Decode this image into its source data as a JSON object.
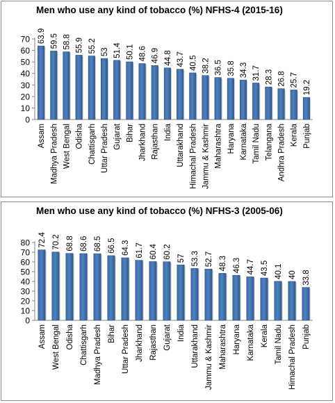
{
  "chart_data": [
    {
      "type": "bar",
      "title": "Men who use any kind of tobacco (%) NFHS-4 (2015-16)",
      "categories": [
        "Assam",
        "Madhya Pradesh",
        "West Bengal",
        "Odisha",
        "Chattisgarh",
        "Uttar Pradesh",
        "Gujarat",
        "Bihar",
        "Jharkhand",
        "Rajasthan",
        "India",
        "Uttarakhand",
        "Himachal Pradesh",
        "Jammu & Kashmir",
        "Maharashtra",
        "Haryana",
        "Karnataka",
        "Tamil Nadu",
        "Telangana",
        "Andhra Pradesh",
        "Kerala",
        "Punjab"
      ],
      "values": [
        63.9,
        59.5,
        58.8,
        55.9,
        55.2,
        53,
        51.4,
        50.1,
        48.6,
        46.9,
        44.8,
        43.7,
        40.5,
        38.2,
        36.5,
        35.8,
        34.3,
        31.7,
        28.3,
        26.8,
        25.7,
        19.2
      ],
      "value_labels": [
        "63.9",
        "59.5",
        "58.8",
        "55.9",
        "55.2",
        "53",
        "51.4",
        "50.1",
        "48.6",
        "46.9",
        "44.8",
        "43.7",
        "40.5",
        "38.2",
        "36.5",
        "35.8",
        "34.3",
        "31.7",
        "28.3",
        "26.8",
        "25.7",
        "19.2"
      ],
      "ylim": [
        0,
        70
      ],
      "yticks": [
        "0",
        "10",
        "20",
        "30",
        "40",
        "50",
        "60",
        "70"
      ],
      "grid": false,
      "bar_color": "#4f81bd"
    },
    {
      "type": "bar",
      "title": "Men who use any kind of tobacco (%) NFHS-3 (2005-06)",
      "categories": [
        "Assam",
        "West Bengal",
        "Odisha",
        "Chattisgarh",
        "Madhya Pradesh",
        "Bihar",
        "Uttar Pradesh",
        "Jharkhand",
        "Rajasthan",
        "Gujarat",
        "India",
        "Uttarakhand",
        "Jammu & Kashmir",
        "Maharashtra",
        "Haryana",
        "Karnataka",
        "Kerala",
        "Tamil Nadu",
        "Himachal Pradesh",
        "Punjab"
      ],
      "values": [
        72.4,
        70.2,
        68.8,
        68.6,
        68.5,
        66.5,
        64.3,
        61.7,
        60.4,
        60.2,
        57,
        53.3,
        52.7,
        48.3,
        46.3,
        44.7,
        43.5,
        40.1,
        40,
        33.8
      ],
      "value_labels": [
        "72.4",
        "70.2",
        "68.8",
        "68.6",
        "68.5",
        "66.5",
        "64.3",
        "61.7",
        "60.4",
        "60.2",
        "57",
        "53.3",
        "52.7",
        "48.3",
        "46.3",
        "44.7",
        "43.5",
        "40.1",
        "40",
        "33.8"
      ],
      "ylim": [
        0,
        80
      ],
      "yticks": [
        "0",
        "10",
        "20",
        "30",
        "40",
        "50",
        "60",
        "70",
        "80"
      ],
      "grid": false,
      "bar_color": "#4f81bd"
    }
  ]
}
